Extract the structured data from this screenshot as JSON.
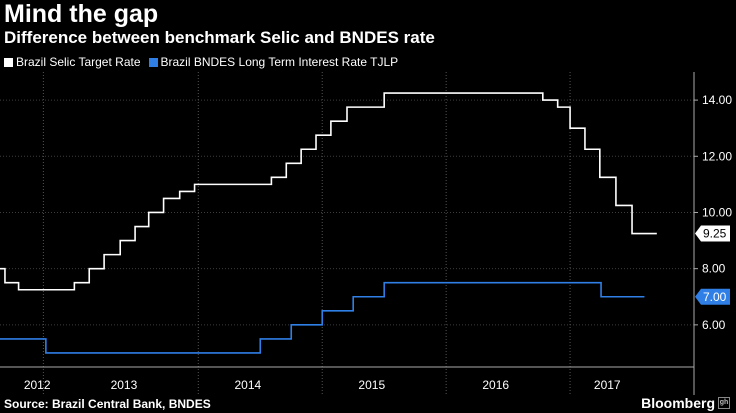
{
  "header": {
    "title": "Mind the gap",
    "subtitle": "Difference between benchmark Selic and BNDES rate"
  },
  "legend": {
    "items": [
      {
        "label": "Brazil Selic Target Rate",
        "color": "#ffffff"
      },
      {
        "label": "Brazil BNDES Long Term Interest Rate TJLP",
        "color": "#2f7fe6"
      }
    ]
  },
  "footer": {
    "source": "Source: Brazil Central Bank, BNDES",
    "brand": "Bloomberg",
    "brand_mark": "gh"
  },
  "chart_data": {
    "type": "line",
    "title": "Mind the gap",
    "subtitle": "Difference between benchmark Selic and BNDES rate",
    "xlabel": "",
    "ylabel": "",
    "xlim": [
      2011.9,
      2017.5
    ],
    "ylim": [
      4.5,
      15.0
    ],
    "y_ticks": [
      6.0,
      8.0,
      10.0,
      12.0,
      14.0
    ],
    "y_tick_labels": [
      "6.00",
      "8.00",
      "10.00",
      "12.00",
      "14.00"
    ],
    "x_tick_labels": [
      {
        "label": "2012",
        "center": 2012.2
      },
      {
        "label": "2013",
        "center": 2012.9
      },
      {
        "label": "2014",
        "center": 2013.9
      },
      {
        "label": "2015",
        "center": 2014.9
      },
      {
        "label": "2016",
        "center": 2015.9
      },
      {
        "label": "2017",
        "center": 2016.8
      }
    ],
    "x_dividers": [
      2012.25,
      2013.5,
      2014.5,
      2015.5,
      2016.5
    ],
    "grid": true,
    "legend_position": "top-left",
    "series": [
      {
        "name": "Brazil Selic Target Rate",
        "color": "#ffffff",
        "x": [
          2011.9,
          2011.94,
          2012.05,
          2012.5,
          2012.62,
          2012.74,
          2012.87,
          2012.99,
          2013.1,
          2013.22,
          2013.35,
          2013.47,
          2013.6,
          2014.09,
          2014.21,
          2014.33,
          2014.45,
          2014.57,
          2014.7,
          2014.84,
          2015.0,
          2016.28,
          2016.4,
          2016.5,
          2016.62,
          2016.74,
          2016.87,
          2017.0,
          2017.12,
          2017.2
        ],
        "values": [
          8.0,
          7.5,
          7.25,
          7.5,
          8.0,
          8.5,
          9.0,
          9.5,
          10.0,
          10.5,
          10.75,
          11.0,
          11.0,
          11.25,
          11.75,
          12.25,
          12.75,
          13.25,
          13.75,
          13.75,
          14.25,
          14.0,
          13.75,
          13.0,
          12.25,
          11.25,
          10.25,
          9.25,
          9.25,
          9.25
        ],
        "end_label": "9.25"
      },
      {
        "name": "Brazil BNDES Long Term Interest Rate TJLP",
        "color": "#2f7fe6",
        "x": [
          2011.9,
          2012.27,
          2014.0,
          2014.25,
          2014.5,
          2014.75,
          2015.0,
          2015.27,
          2015.5,
          2016.75,
          2017.1
        ],
        "values": [
          5.5,
          5.0,
          5.5,
          6.0,
          6.5,
          7.0,
          7.5,
          7.5,
          7.5,
          7.0,
          7.0
        ],
        "end_label": "7.00"
      }
    ]
  }
}
